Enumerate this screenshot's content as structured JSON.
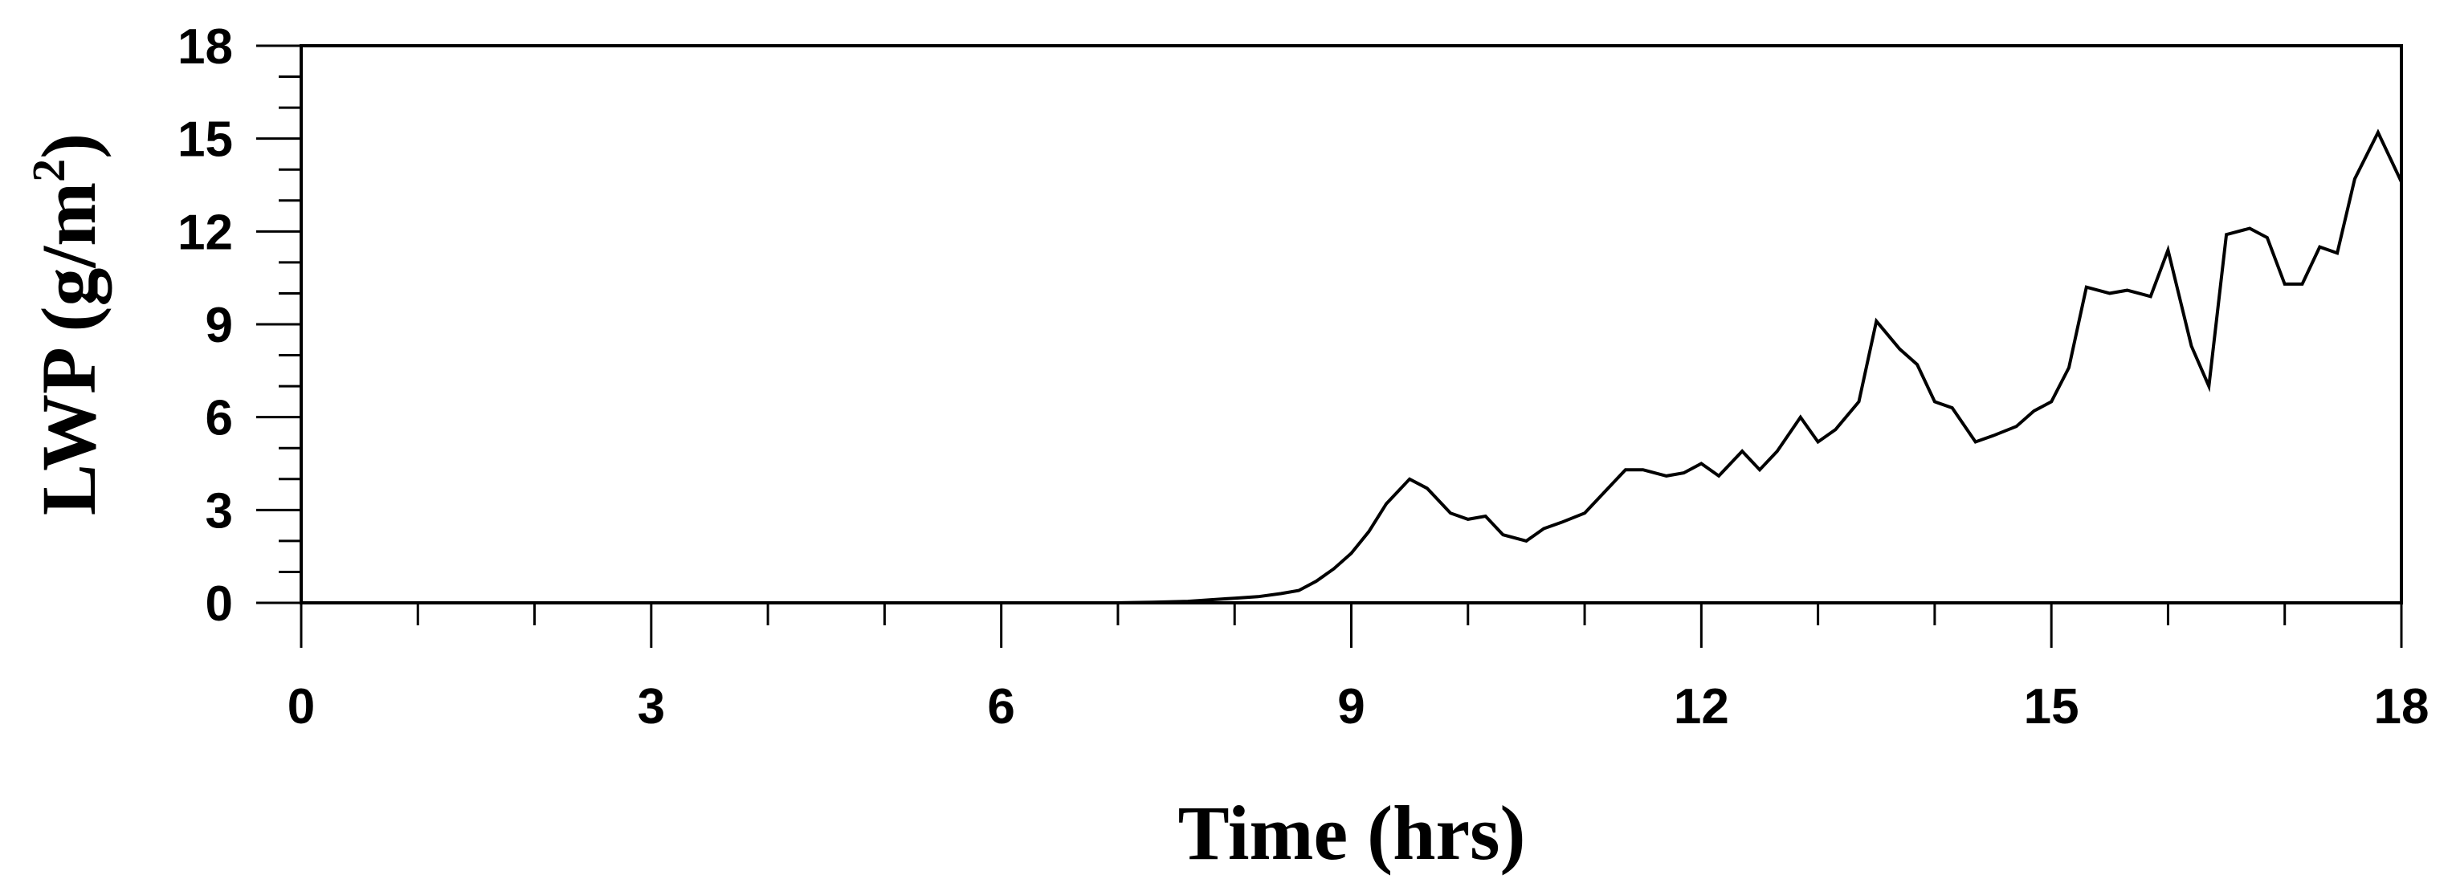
{
  "chart_data": {
    "type": "line",
    "title": "",
    "xlabel": "Time (hrs)",
    "ylabel_main": "LWP (g/m",
    "ylabel_sup": "2",
    "ylabel_close": ")",
    "xlim": [
      0,
      18
    ],
    "ylim": [
      0,
      18
    ],
    "xticks": [
      0,
      3,
      6,
      9,
      12,
      15,
      18
    ],
    "yticks": [
      0,
      3,
      6,
      9,
      12,
      15,
      18
    ],
    "xticks_labels": [
      "0",
      "3",
      "6",
      "9",
      "12",
      "15",
      "18"
    ],
    "yticks_labels": [
      "0",
      "3",
      "6",
      "9",
      "12",
      "15",
      "18"
    ],
    "x_minor_step": 1,
    "y_minor_step": 1,
    "grid": false,
    "legend": "none",
    "line_color": "#000000",
    "series": [
      {
        "x": [
          0,
          7.0,
          7.3,
          7.6,
          7.8,
          8.0,
          8.2,
          8.4,
          8.55,
          8.7,
          8.85,
          9.0,
          9.15,
          9.3,
          9.5,
          9.65,
          9.85,
          10.0,
          10.15,
          10.3,
          10.5,
          10.65,
          10.8,
          11.0,
          11.15,
          11.35,
          11.5,
          11.7,
          11.85,
          12.0,
          12.15,
          12.35,
          12.5,
          12.65,
          12.85,
          13.0,
          13.15,
          13.35,
          13.5,
          13.7,
          13.85,
          14.0,
          14.15,
          14.35,
          14.5,
          14.7,
          14.85,
          15.0,
          15.15,
          15.3,
          15.5,
          15.65,
          15.85,
          16.0,
          16.2,
          16.35,
          16.5,
          16.7,
          16.85,
          17.0,
          17.15,
          17.3,
          17.45,
          17.6,
          17.8,
          18.0
        ],
        "y": [
          0,
          0.0,
          0.02,
          0.05,
          0.1,
          0.15,
          0.2,
          0.3,
          0.4,
          0.7,
          1.1,
          1.6,
          2.3,
          3.2,
          4.0,
          3.7,
          2.9,
          2.7,
          2.8,
          2.2,
          2.0,
          2.4,
          2.6,
          2.9,
          3.5,
          4.3,
          4.3,
          4.1,
          4.2,
          4.5,
          4.1,
          4.9,
          4.3,
          4.9,
          6.0,
          5.2,
          5.6,
          6.5,
          9.1,
          8.2,
          7.7,
          6.5,
          6.3,
          5.2,
          5.4,
          5.7,
          6.2,
          6.5,
          7.6,
          10.2,
          10.0,
          10.1,
          9.9,
          11.4,
          8.3,
          7.0,
          11.9,
          12.1,
          11.8,
          10.3,
          10.3,
          11.5,
          11.3,
          13.7,
          15.2,
          13.6
        ]
      }
    ]
  }
}
